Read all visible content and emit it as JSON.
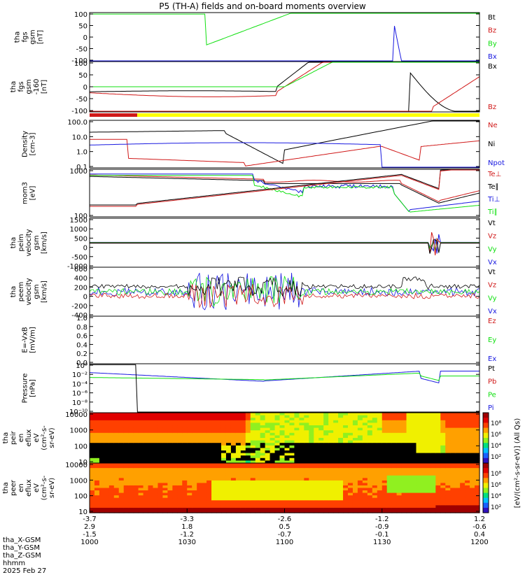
{
  "title": "P5 (TH-A) fields and on-board moments overview",
  "ephemeris": {
    "rows": [
      {
        "label": "tha_X-GSM",
        "values": [
          "-3.7",
          "-3.3",
          "-2.6",
          "-1.2",
          "1.2"
        ]
      },
      {
        "label": "tha_Y-GSM",
        "values": [
          "2.9",
          "1.8",
          "0.5",
          "-0.9",
          "-0.6"
        ]
      },
      {
        "label": "tha_Z-GSM",
        "values": [
          "-1.5",
          "-1.2",
          "-0.7",
          "-0.1",
          "0.4"
        ]
      },
      {
        "label": "hhmm",
        "values": [
          "1000",
          "1030",
          "1100",
          "1130",
          "1200"
        ]
      }
    ],
    "date": "2025 Feb 27"
  },
  "colorbar_label": "[eV/(cm²-s-sr-eV)] (All Qs)",
  "colorbar_ticks": [
    "10⁸",
    "10⁶",
    "10⁴",
    "10²"
  ],
  "colors": {
    "black": "#000000",
    "red": "#d01818",
    "green": "#10e010",
    "blue": "#1818e0",
    "yellow": "#ffff00"
  },
  "chart_data": [
    {
      "type": "line",
      "ylabel": [
        "tha",
        "fgs",
        "gsm",
        "[nT]"
      ],
      "yticks": [
        "100",
        "50",
        "0",
        "-50",
        "-100"
      ],
      "legend": [
        "Bt",
        "Bz",
        "By",
        "Bx"
      ],
      "legend_colors": [
        "black",
        "red",
        "green",
        "blue"
      ]
    },
    {
      "type": "line",
      "ylabel": [
        "tha",
        "fgs",
        "gsm",
        "-160",
        "[nT]"
      ],
      "yticks": [
        "100",
        "50",
        "0",
        "-50",
        "-100"
      ],
      "legend": [
        "Bx",
        "Bz"
      ],
      "legend_colors": [
        "black",
        "red"
      ]
    },
    {
      "type": "line",
      "ylabel": [
        "Density",
        "[cm-3]"
      ],
      "yticks": [
        "100.0",
        "10.0",
        "1.0",
        "0.1"
      ],
      "ylog": true,
      "legend": [
        "Ne",
        "Ni",
        "Npot"
      ],
      "legend_colors": [
        "red",
        "black",
        "blue"
      ]
    },
    {
      "type": "line",
      "ylabel": [
        "mom3",
        "[eV]"
      ],
      "yticks": [
        "1000",
        "100"
      ],
      "ylog": true,
      "legend": [
        "Te⊥",
        "Te∥",
        "Ti⊥",
        "Ti∥"
      ],
      "legend_colors": [
        "red",
        "black",
        "blue",
        "green"
      ]
    },
    {
      "type": "line",
      "ylabel": [
        "tha",
        "peim",
        "velocity",
        "gsm",
        "[km/s]"
      ],
      "yticks": [
        "1500",
        "1000",
        "500",
        "0",
        "-500",
        "-1000"
      ],
      "legend": [
        "Vt",
        "Vz",
        "Vy",
        "Vx"
      ],
      "legend_colors": [
        "black",
        "red",
        "green",
        "blue"
      ]
    },
    {
      "type": "line",
      "ylabel": [
        "tha",
        "peem",
        "velocity",
        "gsm",
        "[km/s]"
      ],
      "yticks": [
        "600",
        "400",
        "200",
        "0",
        "-200",
        "-400"
      ],
      "legend": [
        "Vt",
        "Vz",
        "Vy",
        "Vx"
      ],
      "legend_colors": [
        "black",
        "red",
        "green",
        "blue"
      ]
    },
    {
      "type": "line",
      "ylabel": [
        "E=-VxB",
        "[mV/m]"
      ],
      "yticks": [
        "1.0",
        "0.8",
        "0.6",
        "0.4",
        "0.2",
        "0.0"
      ],
      "legend": [
        "Ez",
        "Ey",
        "Ex"
      ],
      "legend_colors": [
        "red",
        "green",
        "blue"
      ]
    },
    {
      "type": "line",
      "ylabel": [
        "Pressure",
        "[nPa]"
      ],
      "yticks": [
        "10⁰",
        "10⁻²",
        "10⁻⁴",
        "10⁻⁶",
        "10⁻⁸",
        "10⁻¹⁰"
      ],
      "ylog": true,
      "legend": [
        "Pt",
        "Pb",
        "Pe",
        "Pi"
      ],
      "legend_colors": [
        "black",
        "red",
        "green",
        "blue"
      ]
    },
    {
      "type": "heatmap",
      "ylabel": [
        "tha",
        "peir",
        "en",
        "eflux",
        "eV",
        "(cm²-s-",
        "sr-eV)"
      ],
      "yticks": [
        "10000",
        "1000",
        "100",
        "10"
      ]
    },
    {
      "type": "heatmap",
      "ylabel": [
        "tha",
        "peer",
        "en",
        "eflux",
        "eV",
        "(cm²-s-",
        "sr-eV)"
      ],
      "yticks": [
        "10000",
        "1000",
        "100",
        "10"
      ]
    }
  ]
}
